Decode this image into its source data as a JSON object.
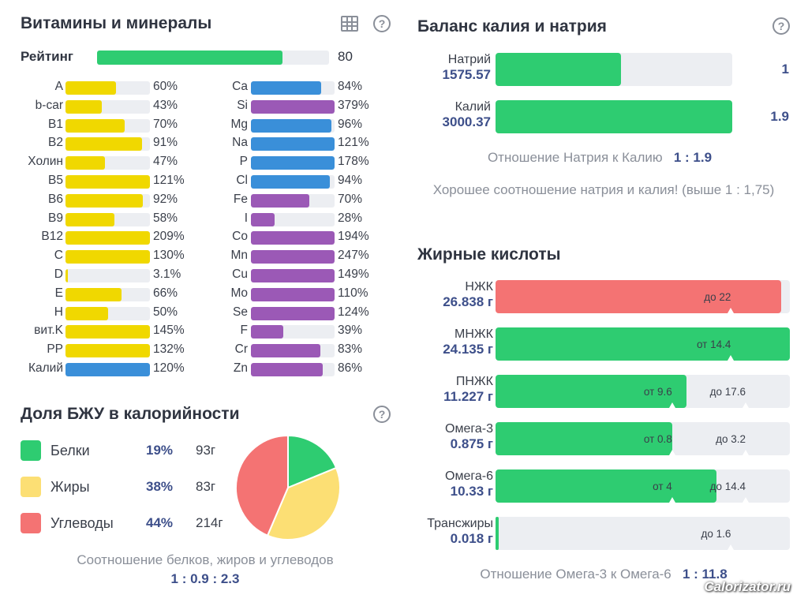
{
  "vitamins_section": {
    "title": "Витамины и минералы",
    "rating_label": "Рейтинг",
    "rating_value": "80",
    "rating_fraction": 0.8,
    "vitamins": [
      {
        "label": "A",
        "pct": "60%",
        "fill": 0.6,
        "color": "#f0d800"
      },
      {
        "label": "b-car",
        "pct": "43%",
        "fill": 0.43,
        "color": "#f0d800"
      },
      {
        "label": "B1",
        "pct": "70%",
        "fill": 0.7,
        "color": "#f0d800"
      },
      {
        "label": "B2",
        "pct": "91%",
        "fill": 0.91,
        "color": "#f0d800"
      },
      {
        "label": "Холин",
        "pct": "47%",
        "fill": 0.47,
        "color": "#f0d800"
      },
      {
        "label": "B5",
        "pct": "121%",
        "fill": 1.0,
        "color": "#f0d800"
      },
      {
        "label": "B6",
        "pct": "92%",
        "fill": 0.92,
        "color": "#f0d800"
      },
      {
        "label": "B9",
        "pct": "58%",
        "fill": 0.58,
        "color": "#f0d800"
      },
      {
        "label": "B12",
        "pct": "209%",
        "fill": 1.0,
        "color": "#f0d800"
      },
      {
        "label": "C",
        "pct": "130%",
        "fill": 1.0,
        "color": "#f0d800"
      },
      {
        "label": "D",
        "pct": "3.1%",
        "fill": 0.031,
        "color": "#f0d800"
      },
      {
        "label": "E",
        "pct": "66%",
        "fill": 0.66,
        "color": "#f0d800"
      },
      {
        "label": "H",
        "pct": "50%",
        "fill": 0.5,
        "color": "#f0d800"
      },
      {
        "label": "вит.K",
        "pct": "145%",
        "fill": 1.0,
        "color": "#f0d800"
      },
      {
        "label": "PP",
        "pct": "132%",
        "fill": 1.0,
        "color": "#f0d800"
      },
      {
        "label": "Калий",
        "pct": "120%",
        "fill": 1.0,
        "color": "#3a8fd9"
      }
    ],
    "minerals": [
      {
        "label": "Ca",
        "pct": "84%",
        "fill": 0.84,
        "color": "#3a8fd9"
      },
      {
        "label": "Si",
        "pct": "379%",
        "fill": 1.0,
        "color": "#9b59b6"
      },
      {
        "label": "Mg",
        "pct": "96%",
        "fill": 0.96,
        "color": "#3a8fd9"
      },
      {
        "label": "Na",
        "pct": "121%",
        "fill": 1.0,
        "color": "#3a8fd9"
      },
      {
        "label": "P",
        "pct": "178%",
        "fill": 1.0,
        "color": "#3a8fd9"
      },
      {
        "label": "Cl",
        "pct": "94%",
        "fill": 0.94,
        "color": "#3a8fd9"
      },
      {
        "label": "Fe",
        "pct": "70%",
        "fill": 0.7,
        "color": "#9b59b6"
      },
      {
        "label": "I",
        "pct": "28%",
        "fill": 0.28,
        "color": "#9b59b6"
      },
      {
        "label": "Co",
        "pct": "194%",
        "fill": 1.0,
        "color": "#9b59b6"
      },
      {
        "label": "Mn",
        "pct": "247%",
        "fill": 1.0,
        "color": "#9b59b6"
      },
      {
        "label": "Cu",
        "pct": "149%",
        "fill": 1.0,
        "color": "#9b59b6"
      },
      {
        "label": "Mo",
        "pct": "110%",
        "fill": 1.0,
        "color": "#9b59b6"
      },
      {
        "label": "Se",
        "pct": "124%",
        "fill": 1.0,
        "color": "#9b59b6"
      },
      {
        "label": "F",
        "pct": "39%",
        "fill": 0.39,
        "color": "#9b59b6"
      },
      {
        "label": "Cr",
        "pct": "83%",
        "fill": 0.83,
        "color": "#9b59b6"
      },
      {
        "label": "Zn",
        "pct": "86%",
        "fill": 0.86,
        "color": "#9b59b6"
      }
    ]
  },
  "macro_section": {
    "title": "Доля БЖУ в калорийности",
    "items": [
      {
        "name": "Белки",
        "pct": "19%",
        "grams": "93г",
        "color": "#2ecc71",
        "share": 0.19
      },
      {
        "name": "Жиры",
        "pct": "38%",
        "grams": "83г",
        "color": "#fcdf74",
        "share": 0.38
      },
      {
        "name": "Углеводы",
        "pct": "44%",
        "grams": "214г",
        "color": "#f47373",
        "share": 0.44
      }
    ],
    "ratio_caption": "Соотношение белков, жиров и углеводов",
    "ratio_value": "1 : 0.9 : 2.3"
  },
  "balance_section": {
    "title": "Баланс калия и натрия",
    "sodium": {
      "name": "Натрий",
      "amount": "1575.57",
      "value": "1",
      "fill": 0.53
    },
    "potassium": {
      "name": "Калий",
      "amount": "3000.37",
      "value": "1.9",
      "fill": 1.0
    },
    "ratio_caption": "Отношение Натрия к Калию",
    "ratio_value": "1 : 1.9",
    "note": "Хорошее соотношение натрия и калия! (выше 1 : 1,75)"
  },
  "fatty_section": {
    "title": "Жирные кислоты",
    "rows": [
      {
        "name": "НЖК",
        "amount": "26.838 г",
        "fill": 0.97,
        "color": "#f47373",
        "marks": [
          {
            "text": "до 22",
            "at": 0.8
          }
        ]
      },
      {
        "name": "МНЖК",
        "amount": "24.135 г",
        "fill": 1.0,
        "color": "#2ecc71",
        "marks": [
          {
            "text": "от 14.4",
            "at": 0.8
          }
        ]
      },
      {
        "name": "ПНЖК",
        "amount": "11.227 г",
        "fill": 0.65,
        "color": "#2ecc71",
        "marks": [
          {
            "text": "от 9.6",
            "at": 0.6
          },
          {
            "text": "до 17.6",
            "at": 0.85
          }
        ]
      },
      {
        "name": "Омега-3",
        "amount": "0.875 г",
        "fill": 0.6,
        "color": "#2ecc71",
        "marks": [
          {
            "text": "от 0.8",
            "at": 0.6
          },
          {
            "text": "до 3.2",
            "at": 0.85
          }
        ]
      },
      {
        "name": "Омега-6",
        "amount": "10.33 г",
        "fill": 0.75,
        "color": "#2ecc71",
        "marks": [
          {
            "text": "от 4",
            "at": 0.6
          },
          {
            "text": "до 14.4",
            "at": 0.85
          }
        ]
      },
      {
        "name": "Трансжиры",
        "amount": "0.018 г",
        "fill": 0.01,
        "color": "#2ecc71",
        "marks": [
          {
            "text": "до 1.6",
            "at": 0.8
          }
        ]
      }
    ],
    "ratio_caption": "Отношение Омега-3 к Омега-6",
    "ratio_value": "1 : 11.8"
  },
  "watermark": "Calorizator.ru"
}
